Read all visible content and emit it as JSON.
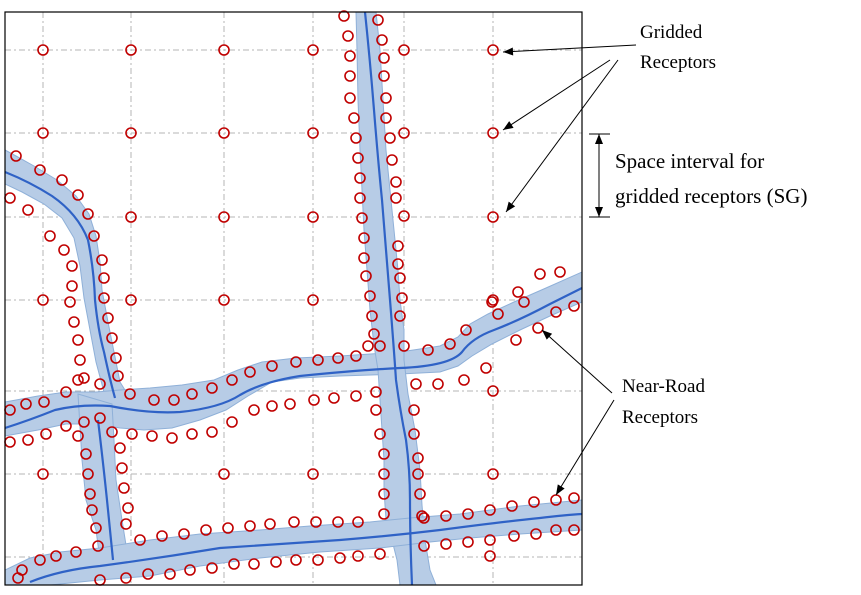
{
  "labels": {
    "gridded_line1": "Gridded",
    "gridded_line2": "Receptors",
    "space_line1": "Space interval for",
    "space_line2": "gridded receptors (SG)",
    "nearroad_line1": "Near-Road",
    "nearroad_line2": "Receptors"
  },
  "colors": {
    "road_fill": "#b7cce6",
    "road_edge": "#8fb0d8",
    "centerline": "#2f62c6",
    "receptor": "#c00000",
    "grid": "#b5b5b5",
    "frame": "#000000"
  }
}
